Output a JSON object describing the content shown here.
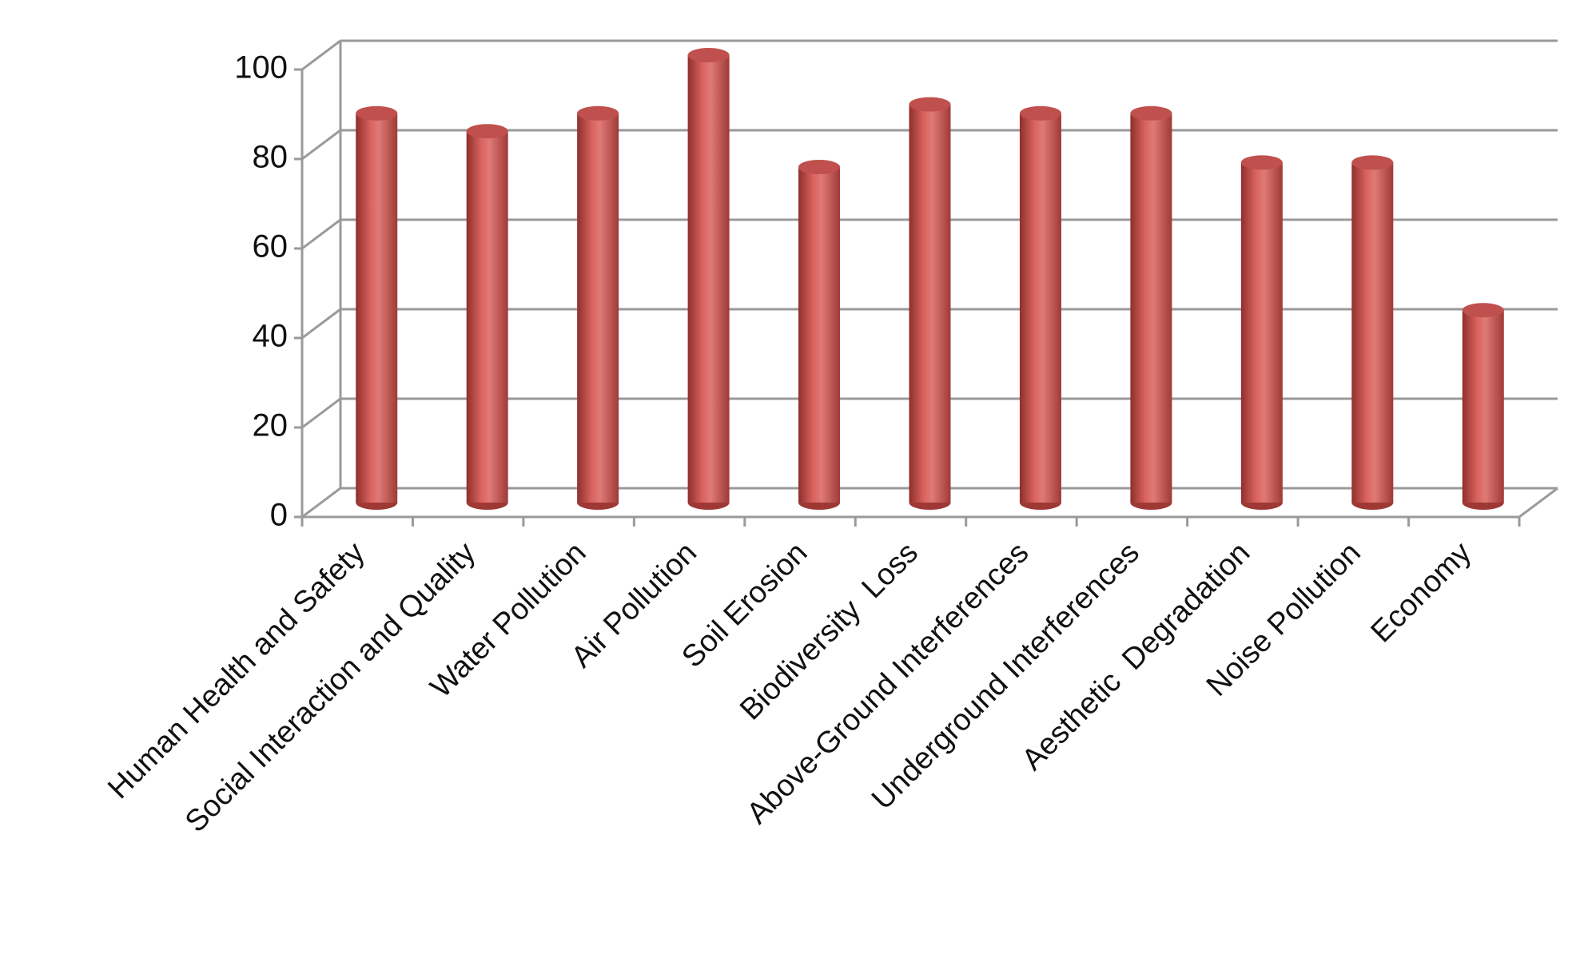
{
  "chart_data": {
    "type": "bar3d-cylinder",
    "categories": [
      "Human Health and Safety",
      "Social Interaction and Quality",
      "Water Pollution",
      "Air Pollution",
      "Soil Erosion",
      "Biodiversity  Loss",
      "Above-Ground Interferences",
      "Underground Interferences",
      "Aesthetic  Degradation",
      "Noise Pollution",
      "Economy"
    ],
    "values": [
      87,
      83,
      87,
      100,
      75,
      89,
      87,
      87,
      76,
      76,
      43
    ],
    "color": "#c0504d",
    "ylim": [
      0,
      100
    ],
    "yticks": [
      0,
      20,
      40,
      60,
      80,
      100
    ],
    "grid": true
  }
}
